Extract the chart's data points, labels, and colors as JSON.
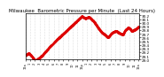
{
  "title": "Milwaukee  Barometric Pressure per Minute  (Last 24 Hours)",
  "title_fontsize": 4.0,
  "background_color": "#ffffff",
  "plot_bg_color": "#ffffff",
  "line_color": "#dd0000",
  "marker": ".",
  "marker_size": 0.8,
  "ylim": [
    29.0,
    30.25
  ],
  "yticks": [
    29.0,
    29.1,
    29.2,
    29.3,
    29.4,
    29.5,
    29.6,
    29.7,
    29.8,
    29.9,
    30.0,
    30.1,
    30.2
  ],
  "ytick_fontsize": 3.0,
  "xtick_fontsize": 2.5,
  "grid_color": "#bbbbbb",
  "grid_style": ":",
  "grid_alpha": 0.9,
  "grid_linewidth": 0.4,
  "num_points": 1440,
  "x_tick_positions": [
    0,
    60,
    120,
    180,
    240,
    300,
    360,
    420,
    480,
    540,
    600,
    660,
    720,
    780,
    840,
    900,
    960,
    1020,
    1080,
    1140,
    1200,
    1260,
    1320,
    1380,
    1439
  ],
  "x_tick_labels": [
    "12a",
    "1",
    "2",
    "3",
    "4",
    "5",
    "6",
    "7",
    "8",
    "9",
    "10",
    "11",
    "12p",
    "1",
    "2",
    "3",
    "4",
    "5",
    "6",
    "7",
    "8",
    "9",
    "10",
    "11",
    "12a"
  ],
  "pressure_keypoints": [
    [
      0.0,
      29.12
    ],
    [
      0.03,
      29.18
    ],
    [
      0.06,
      29.08
    ],
    [
      0.09,
      28.97
    ],
    [
      0.11,
      29.02
    ],
    [
      0.15,
      29.12
    ],
    [
      0.2,
      29.3
    ],
    [
      0.28,
      29.55
    ],
    [
      0.35,
      29.75
    ],
    [
      0.42,
      29.95
    ],
    [
      0.47,
      30.1
    ],
    [
      0.5,
      30.18
    ],
    [
      0.53,
      30.12
    ],
    [
      0.56,
      30.16
    ],
    [
      0.6,
      30.05
    ],
    [
      0.63,
      29.92
    ],
    [
      0.67,
      29.75
    ],
    [
      0.7,
      29.68
    ],
    [
      0.73,
      29.6
    ],
    [
      0.76,
      29.72
    ],
    [
      0.8,
      29.78
    ],
    [
      0.83,
      29.72
    ],
    [
      0.86,
      29.68
    ],
    [
      0.88,
      29.8
    ],
    [
      0.91,
      29.88
    ],
    [
      0.94,
      29.78
    ],
    [
      0.97,
      29.82
    ],
    [
      1.0,
      29.9
    ]
  ]
}
